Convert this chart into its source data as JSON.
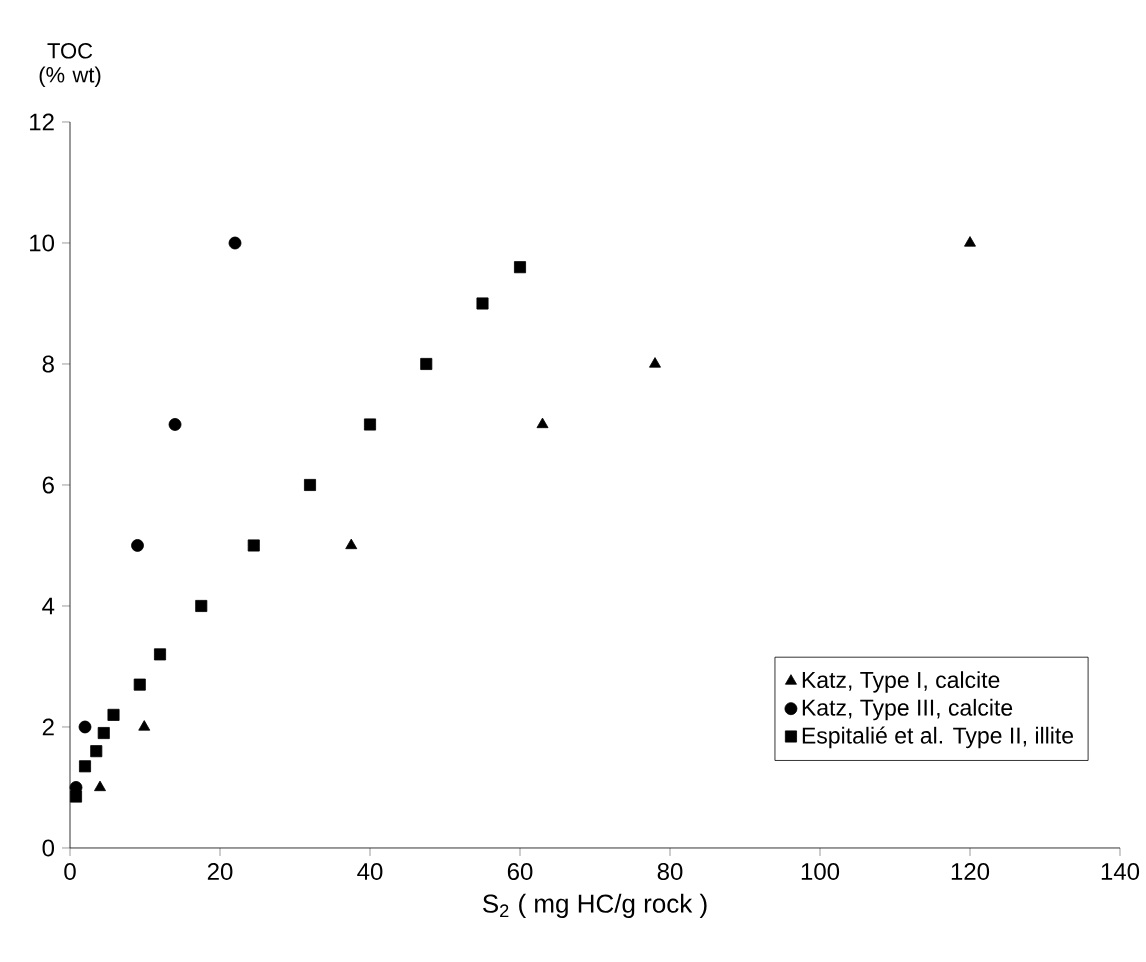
{
  "chart_data": {
    "type": "scatter",
    "xlabel": "S$_{2}$ ( mg HC/g rock )",
    "ylabel": "TOC (% wt)",
    "xlim": [
      0,
      140
    ],
    "ylim": [
      0,
      12
    ],
    "xticks": [
      0,
      20,
      40,
      60,
      80,
      100,
      120,
      140
    ],
    "yticks": [
      0,
      2,
      4,
      6,
      8,
      10,
      12
    ],
    "grid": false,
    "legend": "bottom right",
    "series": [
      {
        "name": "Katz, Type I, calcite",
        "color": "#000000",
        "marker": "triangle",
        "x": [
          120,
          78,
          63,
          37.5,
          9.9,
          4
        ],
        "values": [
          10,
          8,
          7,
          5,
          2,
          1
        ]
      },
      {
        "name": "Katz, Type III, calcite",
        "color": "#000000",
        "marker": "circle",
        "x": [
          22,
          14,
          9,
          2,
          0.8
        ],
        "values": [
          10,
          7,
          5,
          2,
          1
        ]
      },
      {
        "name": "Espitalié et al. Type II, illite",
        "color": "#000000",
        "marker": "square",
        "x": [
          60,
          55,
          47.5,
          40,
          32,
          24.5,
          17.5,
          12,
          9.3,
          5.8,
          4.5,
          3.5,
          2,
          0.8
        ],
        "values": [
          9.6,
          9,
          8,
          7,
          6,
          5,
          4,
          3.2,
          2.7,
          2.2,
          1.9,
          1.6,
          1.35,
          0.85
        ]
      }
    ]
  }
}
